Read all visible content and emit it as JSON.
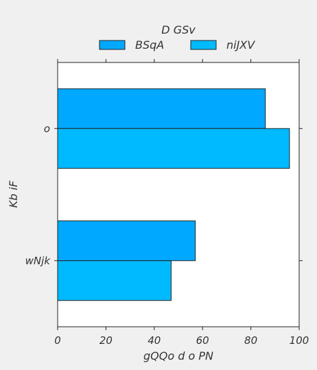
{
  "chart_data": {
    "type": "bar",
    "orientation": "horizontal",
    "categories": [
      "o",
      "wNjk"
    ],
    "series": [
      {
        "name": "BSqA",
        "values": [
          86,
          57
        ],
        "color": "#00a8ff"
      },
      {
        "name": "niJXV",
        "values": [
          96,
          47
        ],
        "color": "#00baff"
      }
    ],
    "xlabel": "gQQo d o PN",
    "ylabel": "Kb iF",
    "xlim": [
      0,
      100
    ],
    "xticks": [
      "0",
      "20",
      "40",
      "60",
      "80",
      "100"
    ],
    "grid": false,
    "legend": {
      "title": "D GSv",
      "placement": "top-center"
    },
    "background_color": "#f0f0f0",
    "plot_background": "#ffffff"
  }
}
